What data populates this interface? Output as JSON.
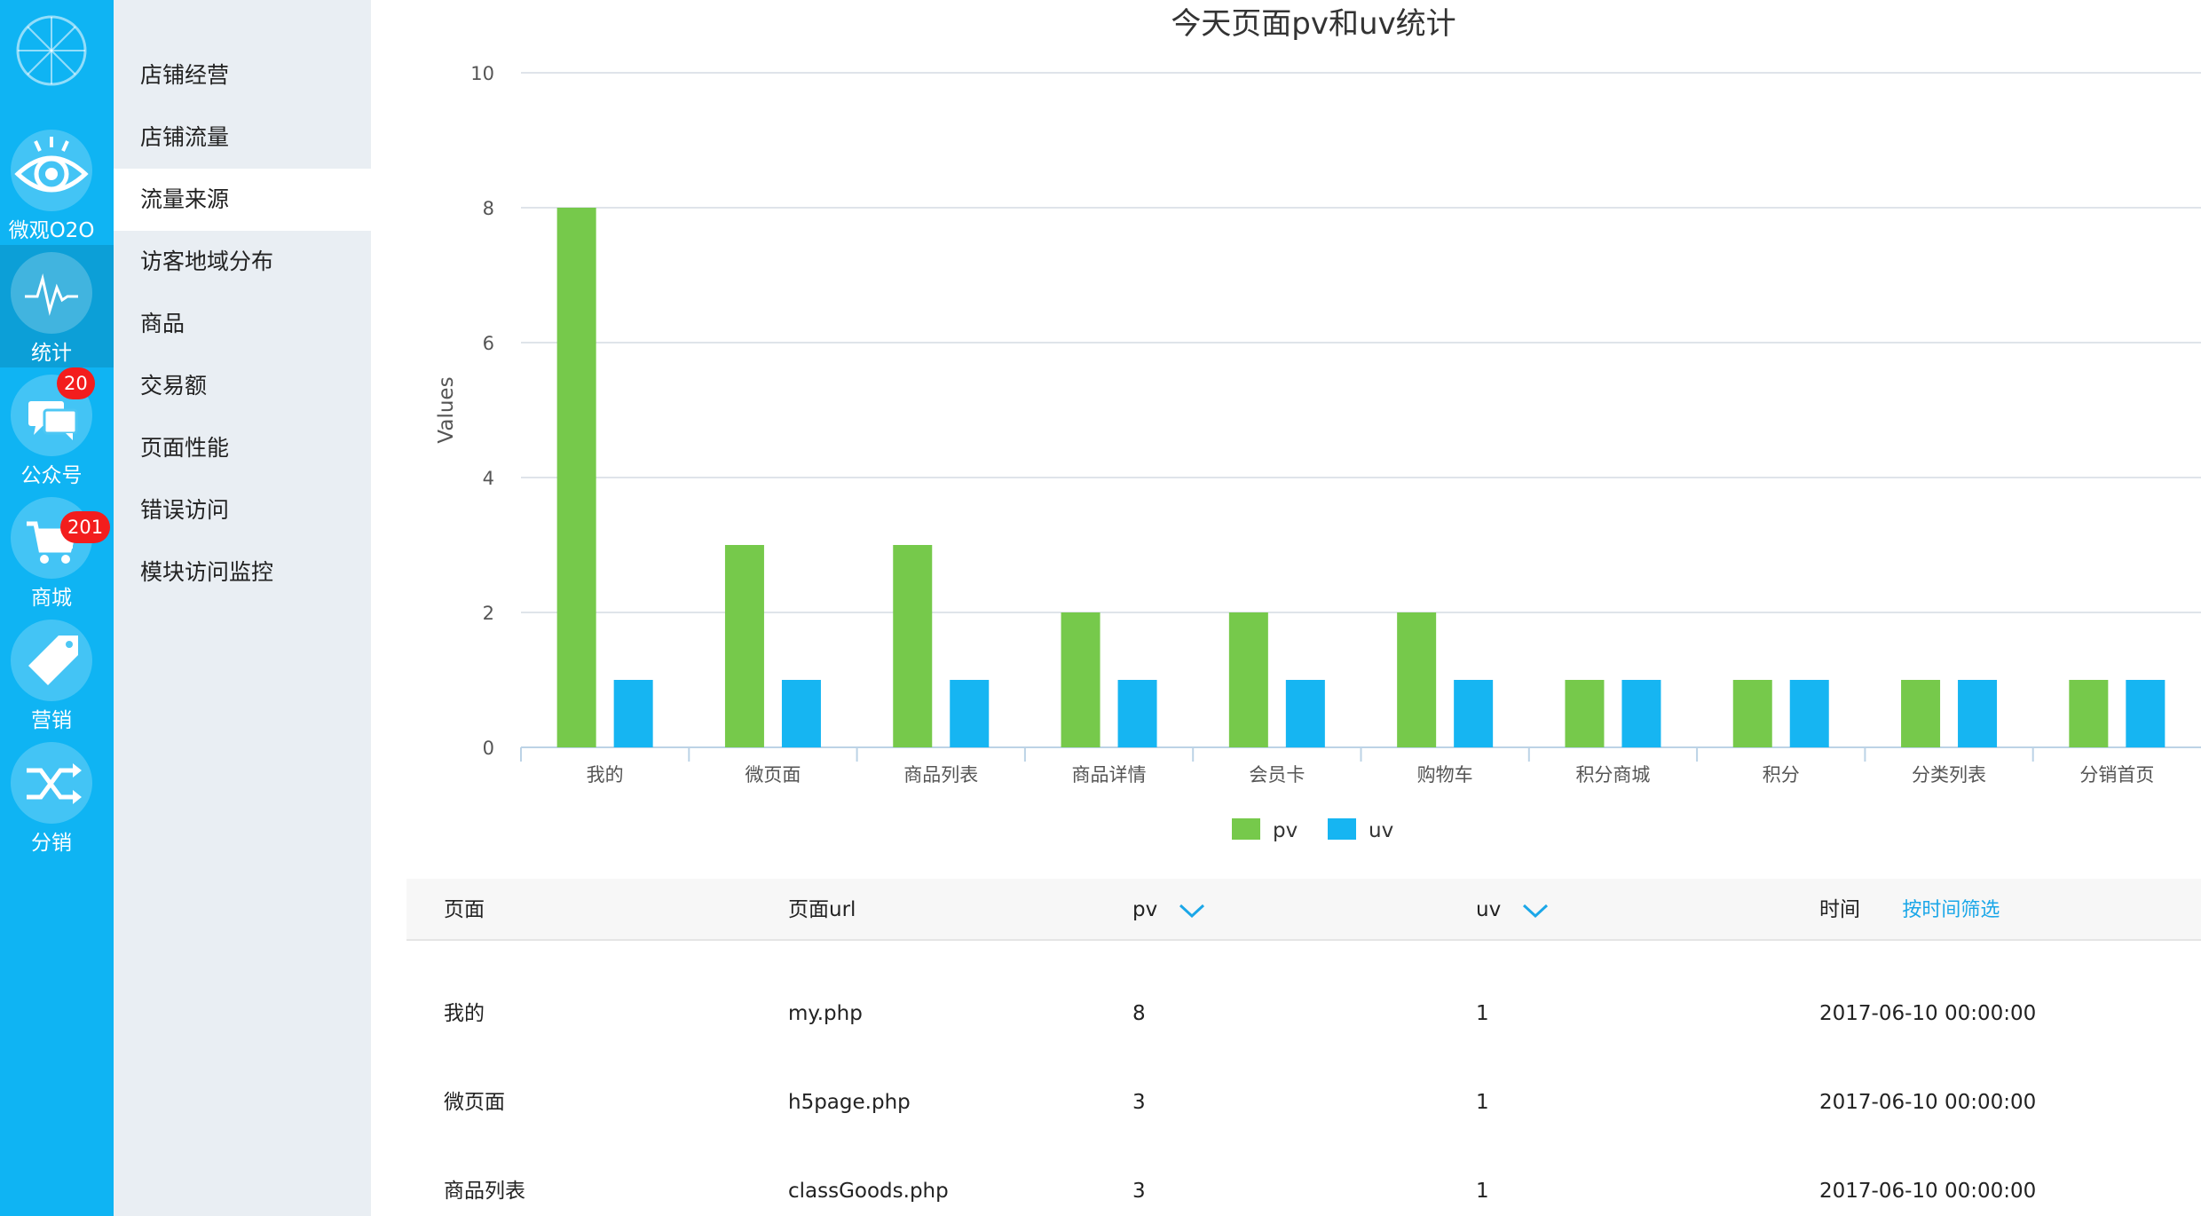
{
  "rail": {
    "items": [
      {
        "label": "微观O2O",
        "icon": "eye-icon"
      },
      {
        "label": "统计",
        "icon": "pulse-icon"
      },
      {
        "label": "公众号",
        "icon": "chat-icon",
        "badge": "20"
      },
      {
        "label": "商城",
        "icon": "cart-icon",
        "badge": "201"
      },
      {
        "label": "营销",
        "icon": "tag-icon"
      },
      {
        "label": "分销",
        "icon": "shuffle-icon"
      }
    ]
  },
  "submenu": {
    "items": [
      "店铺经营",
      "店铺流量",
      "流量来源",
      "访客地域分布",
      "商品",
      "交易额",
      "页面性能",
      "错误访问",
      "模块访问监控"
    ],
    "active_index": 2
  },
  "chart_data": {
    "type": "bar",
    "title": "今天页面pv和uv统计",
    "ylabel": "Values",
    "xlabel": "",
    "ylim": [
      0,
      10
    ],
    "yticks": [
      0,
      2,
      4,
      6,
      8,
      10
    ],
    "categories": [
      "我的",
      "微页面",
      "商品列表",
      "商品详情",
      "会员卡",
      "购物车",
      "积分商城",
      "积分",
      "分类列表",
      "分销首页"
    ],
    "series": [
      {
        "name": "pv",
        "color": "#76c94b",
        "values": [
          8,
          3,
          3,
          2,
          2,
          2,
          1,
          1,
          1,
          1
        ]
      },
      {
        "name": "uv",
        "color": "#16b5f2",
        "values": [
          1,
          1,
          1,
          1,
          1,
          1,
          1,
          1,
          1,
          1
        ]
      }
    ],
    "grid": true,
    "legend": "bottom-center"
  },
  "table": {
    "headers": {
      "page": "页面",
      "url": "页面url",
      "pv": "pv",
      "uv": "uv",
      "time": "时间",
      "filter": "按时间筛选"
    },
    "rows": [
      {
        "page": "我的",
        "url": "my.php",
        "pv": "8",
        "uv": "1",
        "time": "2017-06-10 00:00:00"
      },
      {
        "page": "微页面",
        "url": "h5page.php",
        "pv": "3",
        "uv": "1",
        "time": "2017-06-10 00:00:00"
      },
      {
        "page": "商品列表",
        "url": "classGoods.php",
        "pv": "3",
        "uv": "1",
        "time": "2017-06-10 00:00:00"
      }
    ]
  },
  "colors": {
    "rail": "#0fb4f3",
    "submenu": "#e9eef3",
    "accent": "#1ba7e8",
    "badge": "#f31d1d"
  }
}
